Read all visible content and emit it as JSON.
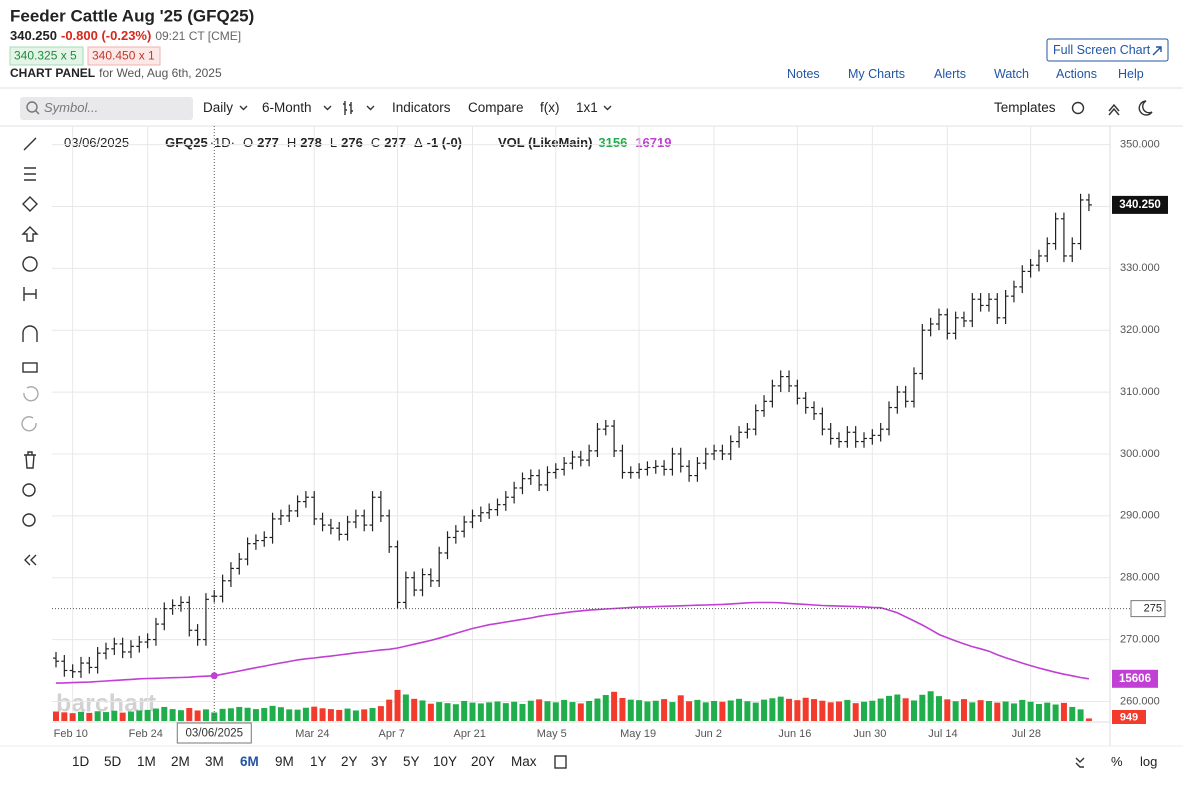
{
  "header": {
    "title": "Feeder Cattle Aug '25 (GFQ25)",
    "change": "-0.800 (-0.23%)",
    "time": "09:21 CT [CME]",
    "bid": "340.325 x 5",
    "ask": "340.450 x 1",
    "panel_label": "CHART PANEL",
    "panel_date": "for Wed, Aug 6th, 2025",
    "full_screen": "Full Screen Chart"
  },
  "nav": [
    "Notes",
    "My Charts",
    "Alerts",
    "Watch",
    "Actions",
    "Help"
  ],
  "toolbar": {
    "search": "Symbol...",
    "items": [
      "Daily",
      "6-Month",
      "Indicators",
      "Compare",
      "f(x)",
      "1x1"
    ],
    "templates": "Templates"
  },
  "periods": [
    "1D",
    "5D",
    "1M",
    "2M",
    "3M",
    "6M",
    "9M",
    "1Y",
    "2Y",
    "3Y",
    "5Y",
    "10Y",
    "20Y",
    "Max"
  ],
  "scale_buttons": [
    "%",
    "log"
  ],
  "watermark": "barchart",
  "chart_data": {
    "type": "ohlc",
    "symbol": "GFQ25",
    "interval": "·1D·",
    "ohlc_labels": [
      "O",
      "H",
      "L",
      "C",
      "Δ"
    ],
    "change_label": "-1 (-0)",
    "crosshair": {
      "date": "03/06/2025",
      "price": 275
    },
    "last": {
      "value": 340.25,
      "label": "340.250"
    },
    "bar_color": "#222222",
    "ylim": [
      257,
      353
    ],
    "yticks": [
      {
        "value": 260,
        "label": "260.000"
      },
      {
        "value": 270,
        "label": "270.000"
      },
      {
        "value": 280,
        "label": "280.000"
      },
      {
        "value": 290,
        "label": "290.000"
      },
      {
        "value": 300,
        "label": "300.000"
      },
      {
        "value": 310,
        "label": "310.000"
      },
      {
        "value": 320,
        "label": "320.000"
      },
      {
        "value": 330,
        "label": "330.000"
      },
      {
        "value": 340,
        "label": "340.000"
      },
      {
        "value": 350,
        "label": "350.000"
      }
    ],
    "grid": true,
    "categories": [
      null,
      null,
      "Feb 10",
      null,
      null,
      null,
      null,
      null,
      null,
      null,
      null,
      "Feb 24",
      null,
      null,
      null,
      null,
      null,
      null,
      null,
      null,
      null,
      null,
      null,
      null,
      null,
      null,
      null,
      null,
      null,
      null,
      null,
      "Mar 24",
      null,
      null,
      null,
      null,
      null,
      null,
      null,
      null,
      null,
      "Apr 7",
      null,
      null,
      null,
      null,
      null,
      null,
      null,
      null,
      "Apr 21",
      null,
      null,
      null,
      null,
      null,
      null,
      null,
      null,
      null,
      "May 5",
      null,
      null,
      null,
      null,
      null,
      null,
      null,
      null,
      null,
      "May 19",
      null,
      null,
      null,
      null,
      null,
      null,
      null,
      null,
      "Jun 2",
      null,
      null,
      null,
      null,
      null,
      null,
      null,
      null,
      null,
      "Jun 16",
      null,
      null,
      null,
      null,
      null,
      null,
      null,
      null,
      "Jun 30",
      null,
      null,
      null,
      null,
      null,
      null,
      null,
      null,
      "Jul 14",
      null,
      null,
      null,
      null,
      null,
      null,
      null,
      null,
      null,
      "Jul 28",
      null,
      null,
      null,
      null,
      null,
      null,
      null
    ],
    "open": [
      267.0,
      266.5,
      265.0,
      264.8,
      266.2,
      265.5,
      267.8,
      268.5,
      269.3,
      268.0,
      268.9,
      269.6,
      270.0,
      272.5,
      275.0,
      275.5,
      276.0,
      271.5,
      270.0,
      277.0,
      277.0,
      279.5,
      281.5,
      283.0,
      285.5,
      286.0,
      286.5,
      289.5,
      290.0,
      290.8,
      292.3,
      293.0,
      289.5,
      288.5,
      288.0,
      287.0,
      289.0,
      290.0,
      288.5,
      293.0,
      290.0,
      285.0,
      276.0,
      280.0,
      278.0,
      280.5,
      279.5,
      284.0,
      286.5,
      287.5,
      289.0,
      290.0,
      290.5,
      291.0,
      291.8,
      293.0,
      294.5,
      296.0,
      296.5,
      295.0,
      297.0,
      297.5,
      298.5,
      299.5,
      299.0,
      300.5,
      304.0,
      304.5,
      300.5,
      297.0,
      297.0,
      297.5,
      297.8,
      298.0,
      297.5,
      300.0,
      298.0,
      296.5,
      298.5,
      300.0,
      300.5,
      300.0,
      302.0,
      303.5,
      304.0,
      307.0,
      308.5,
      311.0,
      312.5,
      311.0,
      309.0,
      307.5,
      306.5,
      304.0,
      302.5,
      302.0,
      303.5,
      302.0,
      302.5,
      303.0,
      304.0,
      307.5,
      310.0,
      308.5,
      313.0,
      320.0,
      321.0,
      322.5,
      319.5,
      322.0,
      321.5,
      325.0,
      324.0,
      325.0,
      322.0,
      325.5,
      327.0,
      329.5,
      330.5,
      332.0,
      334.0,
      338.0,
      332.0,
      334.0,
      341.05
    ],
    "high": [
      268,
      267.5,
      266,
      267.2,
      267.2,
      268.8,
      269.5,
      270.3,
      270.3,
      269.9,
      270.6,
      271,
      273.5,
      276,
      276.5,
      277,
      277,
      272.5,
      277.5,
      278,
      280.5,
      282.5,
      284,
      286.5,
      287,
      287.5,
      290.5,
      291,
      291.8,
      293.3,
      294,
      294,
      290.5,
      289.5,
      289,
      290,
      291,
      291,
      294,
      294,
      291,
      286,
      281,
      281,
      281.5,
      281.5,
      285,
      287.5,
      288.5,
      290,
      291,
      291.5,
      292,
      292.8,
      294,
      295.5,
      297,
      297.5,
      297.5,
      298,
      298.5,
      299.5,
      300.5,
      300.5,
      301.5,
      305,
      305.5,
      305.5,
      301.5,
      298,
      298.5,
      298.8,
      299,
      299,
      301,
      301,
      299,
      299.5,
      301,
      301.5,
      301.5,
      303,
      304.5,
      305,
      308,
      309.5,
      312,
      313.5,
      313.5,
      312,
      310,
      308.5,
      307.5,
      305,
      303.5,
      304.5,
      304.5,
      303.5,
      304,
      305,
      308.5,
      311,
      311,
      314,
      321,
      322,
      323.5,
      323.5,
      323,
      323,
      326,
      326,
      326,
      326,
      326.5,
      328,
      330.5,
      331.5,
      333,
      335,
      339,
      339,
      335,
      342.05,
      342.05
    ],
    "low": [
      265.5,
      264,
      263.8,
      263.8,
      264.5,
      264.5,
      266.8,
      267.5,
      267,
      267,
      267.9,
      268.6,
      269,
      271.5,
      274,
      274.5,
      270.5,
      269,
      269,
      276,
      276,
      278.5,
      280.5,
      282,
      284.5,
      285,
      285.5,
      288.5,
      289,
      289.8,
      291.3,
      288.5,
      287.5,
      287,
      286,
      286,
      288,
      287.5,
      287.5,
      289,
      284,
      275,
      275,
      277,
      277,
      278.5,
      278.5,
      283,
      285.5,
      286.5,
      288,
      289,
      289.5,
      290,
      290.8,
      292,
      293.5,
      295,
      294,
      294,
      296,
      296.5,
      297.5,
      298,
      298,
      299.5,
      303,
      299.5,
      296,
      296,
      296,
      296.5,
      296.8,
      296.5,
      296.5,
      297,
      295.5,
      295.5,
      297.5,
      299,
      299,
      299,
      301,
      302.5,
      303,
      306,
      307.5,
      310,
      310,
      308,
      306.5,
      305.5,
      303,
      301.5,
      301,
      301,
      301,
      301,
      301.5,
      302,
      303,
      306.5,
      307.5,
      307.5,
      312,
      319,
      320,
      318.5,
      318.5,
      320.5,
      320.5,
      323,
      323,
      321,
      321,
      324.5,
      326,
      328.5,
      329.5,
      331,
      333,
      331,
      331,
      333,
      339.25
    ],
    "close": [
      266.5,
      265.0,
      264.8,
      266.2,
      265.5,
      267.8,
      268.5,
      269.3,
      268.0,
      268.9,
      269.6,
      270.0,
      272.5,
      275.0,
      275.5,
      276.0,
      271.5,
      270.0,
      276.5,
      277.0,
      279.5,
      281.5,
      283.0,
      285.5,
      286.0,
      286.5,
      289.5,
      290.0,
      290.8,
      292.3,
      293.0,
      289.5,
      288.5,
      288.0,
      287.0,
      289.0,
      290.0,
      288.5,
      293.0,
      290.0,
      285.0,
      276.0,
      280.0,
      278.0,
      280.5,
      279.5,
      284.0,
      286.5,
      287.5,
      289.0,
      290.0,
      290.5,
      291.0,
      291.8,
      293.0,
      294.5,
      296.0,
      296.5,
      295.0,
      297.0,
      297.5,
      298.5,
      299.5,
      299.0,
      300.5,
      304.0,
      304.5,
      300.5,
      297.0,
      297.0,
      297.5,
      297.8,
      298.0,
      297.5,
      300.0,
      298.0,
      296.5,
      298.5,
      300.0,
      300.5,
      300.0,
      302.0,
      303.5,
      304.0,
      307.0,
      308.5,
      311.0,
      312.5,
      311.0,
      309.0,
      307.5,
      306.5,
      304.0,
      302.5,
      302.0,
      303.5,
      302.0,
      302.5,
      303.0,
      304.0,
      307.5,
      310.0,
      308.5,
      313.0,
      320.0,
      321.0,
      322.5,
      319.5,
      322.0,
      321.5,
      325.0,
      324.0,
      325.0,
      322.0,
      325.5,
      327.0,
      329.5,
      330.5,
      332.0,
      334.0,
      338.0,
      332.0,
      334.0,
      341.05,
      340.25
    ],
    "volume": {
      "name": "VOL (LikeMain)",
      "up_color": "#1fae4b",
      "down_color": "#f23b2c",
      "vlim": [
        0,
        220000
      ],
      "values": [
        3500,
        3200,
        2900,
        3400,
        3000,
        3600,
        3300,
        3800,
        3100,
        3500,
        3900,
        4100,
        4600,
        5200,
        4400,
        4000,
        4800,
        3900,
        4300,
        3156,
        4500,
        4700,
        5200,
        4900,
        4400,
        4800,
        5600,
        5100,
        4300,
        4200,
        4900,
        5300,
        4700,
        4400,
        4100,
        4600,
        3900,
        4300,
        4800,
        5500,
        7900,
        11500,
        9800,
        8200,
        7600,
        6400,
        7000,
        6600,
        6200,
        7400,
        6800,
        6500,
        6900,
        7200,
        6600,
        7100,
        6300,
        7500,
        8000,
        7300,
        6900,
        7800,
        7000,
        6500,
        7400,
        8300,
        9600,
        10800,
        8500,
        7900,
        7700,
        7200,
        7500,
        8100,
        7000,
        9500,
        7300,
        7800,
        6900,
        7400,
        7100,
        7600,
        8200,
        7300,
        6800,
        7900,
        8400,
        9000,
        8200,
        7700,
        8600,
        8100,
        7500,
        6900,
        7200,
        7800,
        6600,
        7100,
        7500,
        8300,
        9300,
        9800,
        8400,
        7600,
        9700,
        11000,
        9200,
        8000,
        7300,
        8100,
        6900,
        7700,
        7400,
        6800,
        7200,
        6500,
        7800,
        7100,
        6300,
        6800,
        6100,
        6700,
        5200,
        4300,
        949
      ]
    },
    "line": {
      "color": "#c13fd4",
      "values": [
        14000,
        14100,
        14200,
        14300,
        14400,
        14600,
        14800,
        15000,
        15200,
        15400,
        15600,
        15700,
        15800,
        15900,
        16000,
        16100,
        16200,
        16400,
        16550,
        16719,
        17300,
        17900,
        18500,
        19100,
        19700,
        20300,
        20900,
        21500,
        22000,
        22600,
        23000,
        23300,
        23700,
        24000,
        24400,
        24800,
        25200,
        25500,
        25900,
        26300,
        26500,
        27000,
        27700,
        28400,
        29100,
        29800,
        30600,
        31500,
        32400,
        33300,
        34200,
        34900,
        35600,
        36100,
        36600,
        37100,
        37600,
        38100,
        38700,
        39200,
        39600,
        40000,
        40400,
        40700,
        41000,
        41200,
        41400,
        41600,
        41800,
        42000,
        42100,
        42200,
        42300,
        42400,
        42500,
        42600,
        42700,
        42800,
        42900,
        43000,
        43100,
        43300,
        43500,
        43700,
        43800,
        43800,
        43800,
        43700,
        43500,
        43300,
        43100,
        42900,
        42700,
        42600,
        42500,
        42400,
        42300,
        42200,
        42000,
        41900,
        41000,
        40000,
        38500,
        37000,
        35500,
        33800,
        32000,
        30800,
        29600,
        28500,
        27500,
        26700,
        25800,
        24500,
        23400,
        22400,
        21400,
        20500,
        19600,
        18800,
        18000,
        17300,
        16700,
        16100,
        15606
      ]
    }
  }
}
